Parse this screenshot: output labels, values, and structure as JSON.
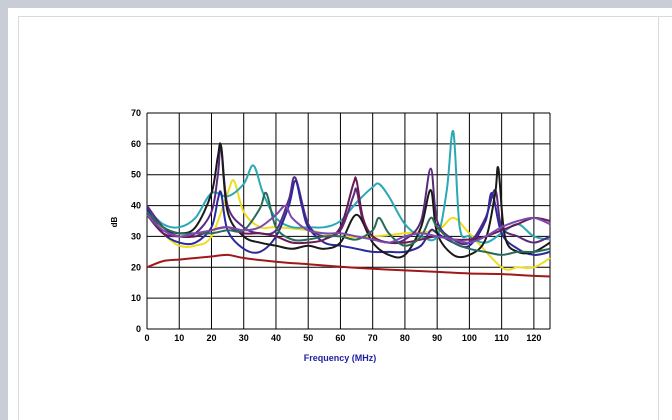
{
  "chart_data": {
    "type": "line",
    "title": "",
    "xlabel": "Frequency (MHz)",
    "ylabel": "dB",
    "xlim": [
      0,
      125
    ],
    "ylim": [
      0,
      70
    ],
    "x_ticks": [
      0,
      10,
      20,
      30,
      40,
      50,
      60,
      70,
      80,
      90,
      100,
      110,
      120
    ],
    "y_ticks": [
      0,
      10,
      20,
      30,
      40,
      50,
      60,
      70
    ],
    "grid": true,
    "legend": "none",
    "series": [
      {
        "color": "#a01818",
        "x": [
          0,
          5,
          10,
          15,
          20,
          25,
          30,
          40,
          50,
          60,
          70,
          80,
          90,
          100,
          110,
          120,
          125
        ],
        "y": [
          20,
          22,
          22.5,
          23,
          23.5,
          24,
          23,
          21.8,
          21,
          20.2,
          19.5,
          19,
          18.5,
          18,
          17.8,
          17.2,
          17
        ]
      },
      {
        "color": "#f0dc1e",
        "x": [
          0,
          5,
          10,
          15,
          20,
          25,
          27,
          30,
          35,
          40,
          50,
          60,
          70,
          80,
          90,
          95,
          100,
          110,
          115,
          120,
          125
        ],
        "y": [
          38,
          31,
          27,
          27,
          30,
          44,
          48,
          38,
          33,
          33,
          32,
          30,
          30,
          31,
          32,
          36,
          31,
          20,
          20,
          20,
          23
        ]
      },
      {
        "color": "#2aa8b4",
        "x": [
          0,
          5,
          10,
          15,
          20,
          25,
          30,
          33,
          36,
          40,
          45,
          50,
          55,
          60,
          65,
          70,
          72,
          75,
          80,
          85,
          90,
          93,
          95,
          97,
          100,
          105,
          110,
          115,
          120,
          125
        ],
        "y": [
          39,
          34,
          33,
          36,
          44,
          43,
          47,
          53,
          44,
          36,
          33,
          33,
          33,
          35,
          41,
          46,
          47,
          43,
          34,
          30,
          30,
          45,
          64,
          33,
          30,
          28,
          31,
          34,
          30,
          29
        ]
      },
      {
        "color": "#5b2a7e",
        "x": [
          0,
          5,
          10,
          15,
          20,
          22,
          23,
          25,
          30,
          35,
          40,
          44,
          46,
          50,
          55,
          60,
          64,
          65,
          67,
          70,
          75,
          80,
          85,
          88,
          90,
          95,
          100,
          105,
          108,
          110,
          115,
          120,
          125
        ],
        "y": [
          40,
          33,
          30,
          31,
          38,
          50,
          59,
          40,
          33,
          31,
          32,
          42,
          49,
          34,
          30,
          32,
          43,
          45,
          35,
          30,
          28,
          29,
          35,
          52,
          35,
          29,
          28,
          36,
          45,
          33,
          30,
          28,
          30
        ]
      },
      {
        "color": "#2a2a9c",
        "x": [
          0,
          5,
          10,
          15,
          20,
          22,
          23,
          25,
          30,
          35,
          40,
          44,
          46,
          48,
          50,
          55,
          60,
          65,
          70,
          75,
          80,
          85,
          88,
          90,
          95,
          100,
          105,
          107,
          110,
          115,
          120,
          125
        ],
        "y": [
          39,
          31,
          28,
          28,
          33,
          42,
          44,
          32,
          26,
          25,
          30,
          40,
          48,
          40,
          33,
          28,
          27,
          26,
          25,
          25,
          25,
          27,
          32,
          31,
          28,
          27,
          35,
          44,
          31,
          26,
          24,
          25
        ]
      },
      {
        "color": "#1a1a1a",
        "x": [
          0,
          5,
          10,
          15,
          20,
          22,
          23,
          25,
          30,
          35,
          40,
          45,
          50,
          55,
          60,
          65,
          70,
          75,
          80,
          85,
          88,
          90,
          95,
          100,
          105,
          108,
          109,
          111,
          115,
          120,
          125
        ],
        "y": [
          38,
          33,
          31,
          33,
          44,
          56,
          59,
          38,
          30,
          28,
          27,
          26,
          27,
          26,
          28,
          37,
          28,
          24,
          24,
          33,
          45,
          31,
          24,
          24,
          29,
          44,
          52,
          30,
          25,
          25,
          28
        ]
      },
      {
        "color": "#6a1b54",
        "x": [
          0,
          5,
          10,
          15,
          20,
          25,
          30,
          35,
          40,
          45,
          50,
          55,
          60,
          64,
          65,
          67,
          70,
          75,
          80,
          85,
          90,
          95,
          100,
          105,
          110,
          115,
          120,
          125
        ],
        "y": [
          37,
          31,
          30,
          30,
          32,
          33,
          31,
          31,
          30,
          28,
          28,
          29,
          33,
          47,
          48,
          36,
          30,
          28,
          28,
          29,
          30,
          29,
          29,
          30,
          32,
          34,
          36,
          35
        ]
      },
      {
        "color": "#2a6a5a",
        "x": [
          0,
          5,
          10,
          15,
          20,
          25,
          30,
          35,
          37,
          40,
          45,
          50,
          55,
          60,
          65,
          70,
          72,
          75,
          80,
          85,
          88,
          90,
          95,
          100,
          105,
          110,
          115,
          120,
          125
        ],
        "y": [
          38,
          33,
          31,
          31,
          31,
          32,
          32,
          39,
          44,
          33,
          29,
          29,
          30,
          30,
          29,
          32,
          36,
          31,
          27,
          30,
          36,
          33,
          28,
          26,
          25,
          24,
          25,
          25,
          26
        ]
      },
      {
        "color": "#7a4ab0",
        "x": [
          0,
          5,
          10,
          15,
          20,
          25,
          30,
          35,
          40,
          43,
          45,
          50,
          55,
          60,
          65,
          70,
          75,
          80,
          85,
          90,
          95,
          100,
          105,
          110,
          115,
          120,
          125
        ],
        "y": [
          37,
          32,
          30,
          31,
          32,
          33,
          32,
          33,
          37,
          40,
          36,
          32,
          31,
          31,
          30,
          29,
          28,
          30,
          31,
          30,
          29,
          28,
          30,
          33,
          35,
          36,
          34
        ]
      }
    ]
  }
}
